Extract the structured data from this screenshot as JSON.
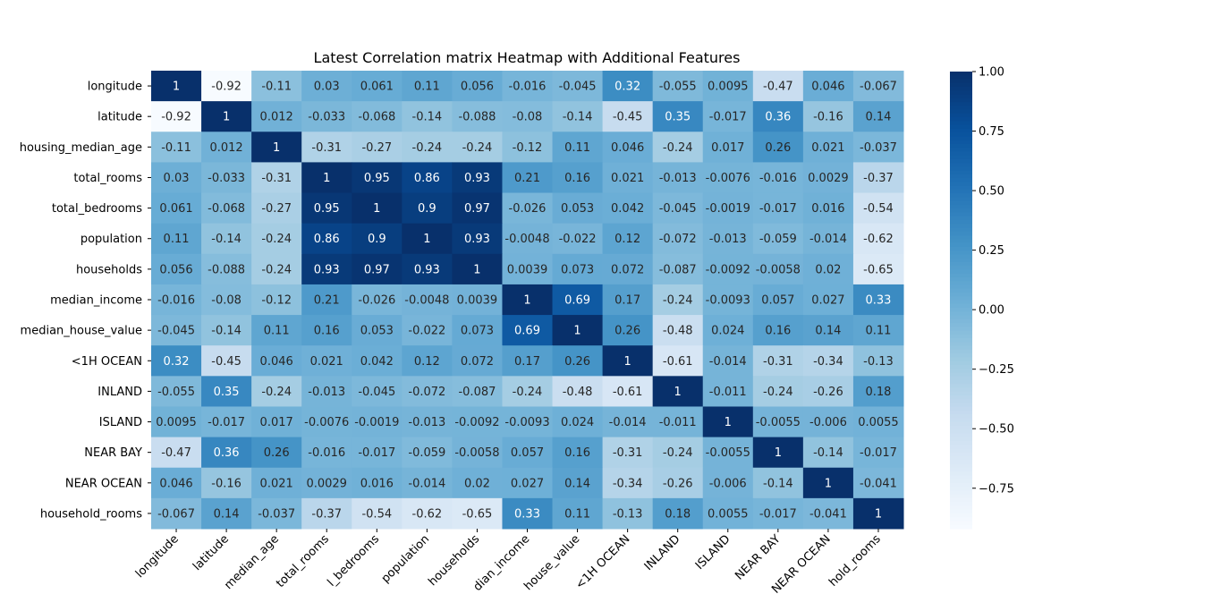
{
  "chart_data": {
    "type": "heatmap",
    "title": "Latest Correlation matrix Heatmap with Additional Features",
    "labels": [
      "longitude",
      "latitude",
      "housing_median_age",
      "total_rooms",
      "total_bedrooms",
      "population",
      "households",
      "median_income",
      "median_house_value",
      "<1H OCEAN",
      "INLAND",
      "ISLAND",
      "NEAR BAY",
      "NEAR OCEAN",
      "household_rooms"
    ],
    "values": [
      [
        "1",
        "-0.92",
        "-0.11",
        "0.03",
        "0.061",
        "0.11",
        "0.056",
        "-0.016",
        "-0.045",
        "0.32",
        "-0.055",
        "0.0095",
        "-0.47",
        "0.046",
        "-0.067"
      ],
      [
        "-0.92",
        "1",
        "0.012",
        "-0.033",
        "-0.068",
        "-0.14",
        "-0.088",
        "-0.08",
        "-0.14",
        "-0.45",
        "0.35",
        "-0.017",
        "0.36",
        "-0.16",
        "0.14"
      ],
      [
        "-0.11",
        "0.012",
        "1",
        "-0.31",
        "-0.27",
        "-0.24",
        "-0.24",
        "-0.12",
        "0.11",
        "0.046",
        "-0.24",
        "0.017",
        "0.26",
        "0.021",
        "-0.037"
      ],
      [
        "0.03",
        "-0.033",
        "-0.31",
        "1",
        "0.95",
        "0.86",
        "0.93",
        "0.21",
        "0.16",
        "0.021",
        "-0.013",
        "-0.0076",
        "-0.016",
        "0.0029",
        "-0.37"
      ],
      [
        "0.061",
        "-0.068",
        "-0.27",
        "0.95",
        "1",
        "0.9",
        "0.97",
        "-0.026",
        "0.053",
        "0.042",
        "-0.045",
        "-0.0019",
        "-0.017",
        "0.016",
        "-0.54"
      ],
      [
        "0.11",
        "-0.14",
        "-0.24",
        "0.86",
        "0.9",
        "1",
        "0.93",
        "-0.0048",
        "-0.022",
        "0.12",
        "-0.072",
        "-0.013",
        "-0.059",
        "-0.014",
        "-0.62"
      ],
      [
        "0.056",
        "-0.088",
        "-0.24",
        "0.93",
        "0.97",
        "0.93",
        "1",
        "0.0039",
        "0.073",
        "0.072",
        "-0.087",
        "-0.0092",
        "-0.0058",
        "0.02",
        "-0.65"
      ],
      [
        "-0.016",
        "-0.08",
        "-0.12",
        "0.21",
        "-0.026",
        "-0.0048",
        "0.0039",
        "1",
        "0.69",
        "0.17",
        "-0.24",
        "-0.0093",
        "0.057",
        "0.027",
        "0.33"
      ],
      [
        "-0.045",
        "-0.14",
        "0.11",
        "0.16",
        "0.053",
        "-0.022",
        "0.073",
        "0.69",
        "1",
        "0.26",
        "-0.48",
        "0.024",
        "0.16",
        "0.14",
        "0.11"
      ],
      [
        "0.32",
        "-0.45",
        "0.046",
        "0.021",
        "0.042",
        "0.12",
        "0.072",
        "0.17",
        "0.26",
        "1",
        "-0.61",
        "-0.014",
        "-0.31",
        "-0.34",
        "-0.13"
      ],
      [
        "-0.055",
        "0.35",
        "-0.24",
        "-0.013",
        "-0.045",
        "-0.072",
        "-0.087",
        "-0.24",
        "-0.48",
        "-0.61",
        "1",
        "-0.011",
        "-0.24",
        "-0.26",
        "0.18"
      ],
      [
        "0.0095",
        "-0.017",
        "0.017",
        "-0.0076",
        "-0.0019",
        "-0.013",
        "-0.0092",
        "-0.0093",
        "0.024",
        "-0.014",
        "-0.011",
        "1",
        "-0.0055",
        "-0.006",
        "0.0055"
      ],
      [
        "-0.47",
        "0.36",
        "0.26",
        "-0.016",
        "-0.017",
        "-0.059",
        "-0.0058",
        "0.057",
        "0.16",
        "-0.31",
        "-0.24",
        "-0.0055",
        "1",
        "-0.14",
        "-0.017"
      ],
      [
        "0.046",
        "-0.16",
        "0.021",
        "0.0029",
        "0.016",
        "-0.014",
        "0.02",
        "0.027",
        "0.14",
        "-0.34",
        "-0.26",
        "-0.006",
        "-0.14",
        "1",
        "-0.041"
      ],
      [
        "-0.067",
        "0.14",
        "-0.037",
        "-0.37",
        "-0.54",
        "-0.62",
        "-0.65",
        "0.33",
        "0.11",
        "-0.13",
        "0.18",
        "0.0055",
        "-0.017",
        "-0.041",
        "1"
      ]
    ],
    "colorbar": {
      "colormap": "Blues",
      "vmin": -0.92,
      "vmax": 1.0,
      "ticks": [
        1.0,
        0.75,
        0.5,
        0.25,
        0.0,
        -0.25,
        -0.5,
        -0.75
      ],
      "tick_labels": [
        "1.00",
        "0.75",
        "0.50",
        "0.25",
        "0.00",
        "−0.25",
        "−0.50",
        "−0.75"
      ]
    },
    "x_tick_labels_visible": [
      "longitude",
      "latitude",
      "median_age",
      "total_rooms",
      "l_bedrooms",
      "population",
      "households",
      "dian_income",
      "house_value",
      "<1H OCEAN",
      "INLAND",
      "ISLAND",
      "NEAR BAY",
      "NEAR OCEAN",
      "hold_rooms"
    ],
    "colors": {
      "blues": [
        "#f7fbff",
        "#deebf7",
        "#c6dbef",
        "#9ecae1",
        "#6baed6",
        "#4292c6",
        "#2171b5",
        "#08519c",
        "#08306b"
      ]
    }
  }
}
